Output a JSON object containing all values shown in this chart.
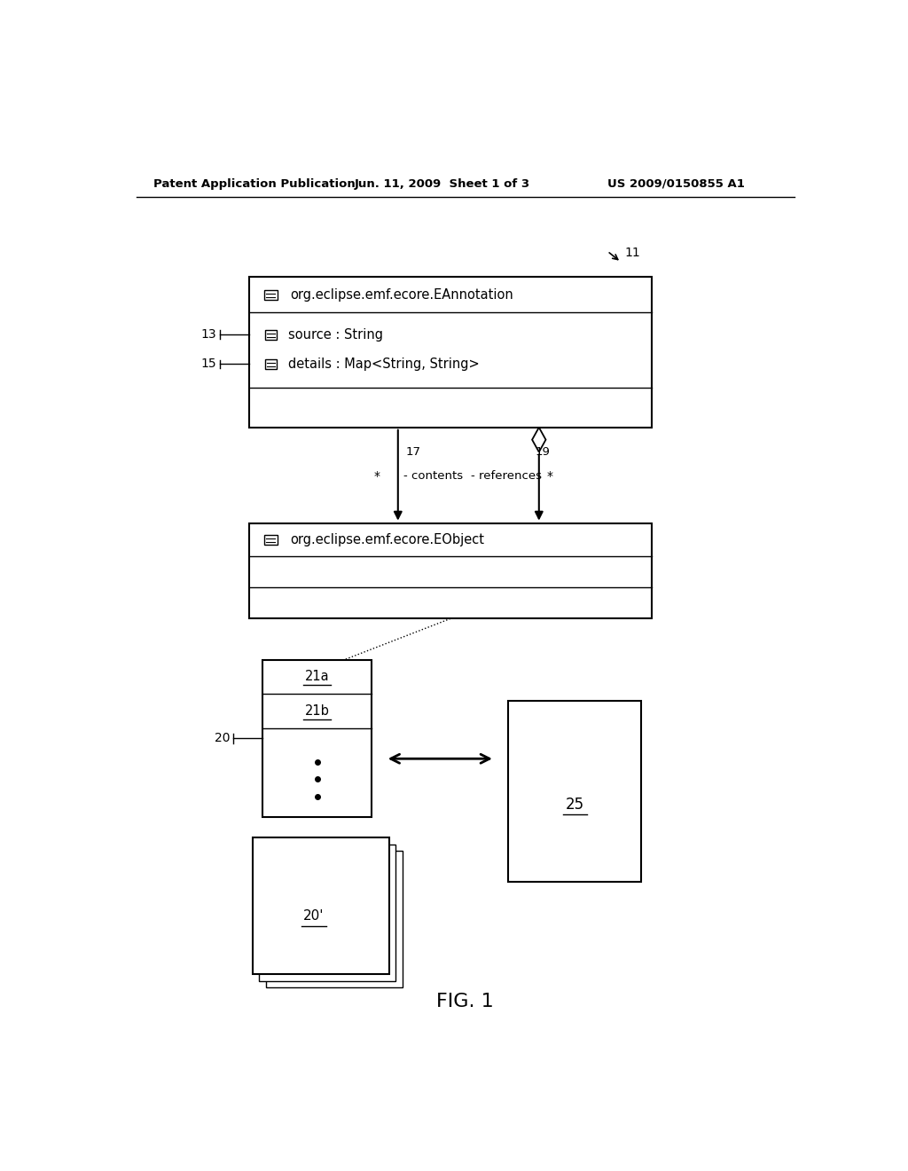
{
  "header_left": "Patent Application Publication",
  "header_center": "Jun. 11, 2009  Sheet 1 of 3",
  "header_right": "US 2009/0150855 A1",
  "fig_label": "FIG. 1",
  "ref_11": "11",
  "ref_13": "13",
  "ref_15": "15",
  "ref_17": "17",
  "ref_19": "19",
  "ref_20": "20",
  "ref_20p": "20'",
  "ref_21a": "21a",
  "ref_21b": "21b",
  "ref_25": "25",
  "class1_title": "org.eclipse.emf.ecore.EAnnotation",
  "class1_attr1": "source : String",
  "class1_attr2": "details : Map<String, String>",
  "class2_title": "org.eclipse.emf.ecore.EObject",
  "arrow_label_contents": "- contents",
  "arrow_label_references": "- references",
  "arrow_mult_left": "*",
  "arrow_mult_right": "*",
  "bg_color": "#ffffff",
  "text_color": "#000000"
}
